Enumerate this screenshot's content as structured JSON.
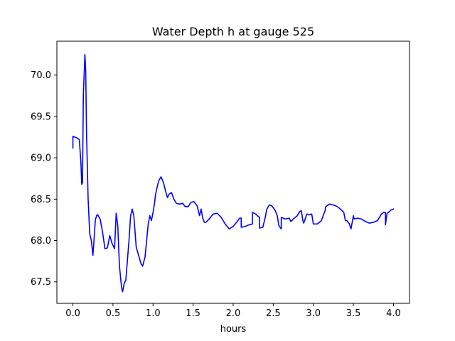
{
  "chart_data": {
    "type": "line",
    "title": "Water Depth h at gauge 525",
    "xlabel": "hours",
    "ylabel": "",
    "xlim": [
      -0.2,
      4.2
    ],
    "ylim": [
      67.24,
      70.41
    ],
    "xticks": [
      0.0,
      0.5,
      1.0,
      1.5,
      2.0,
      2.5,
      3.0,
      3.5,
      4.0
    ],
    "xtick_labels": [
      "0.0",
      "0.5",
      "1.0",
      "1.5",
      "2.0",
      "2.5",
      "3.0",
      "3.5",
      "4.0"
    ],
    "yticks": [
      67.5,
      68.0,
      68.5,
      69.0,
      69.5,
      70.0
    ],
    "ytick_labels": [
      "67.5",
      "68.0",
      "68.5",
      "69.0",
      "69.5",
      "70.0"
    ],
    "grid": false,
    "series": [
      {
        "color": "#0000ff",
        "x": [
          0.0,
          0.0,
          0.05,
          0.08,
          0.1,
          0.11,
          0.12,
          0.13,
          0.15,
          0.16,
          0.17,
          0.19,
          0.21,
          0.23,
          0.25,
          0.27,
          0.28,
          0.3,
          0.31,
          0.34,
          0.37,
          0.4,
          0.43,
          0.46,
          0.49,
          0.52,
          0.54,
          0.56,
          0.58,
          0.6,
          0.61,
          0.62,
          0.64,
          0.66,
          0.69,
          0.7,
          0.72,
          0.74,
          0.76,
          0.79,
          0.82,
          0.85,
          0.87,
          0.9,
          0.92,
          0.94,
          0.96,
          0.98,
          1.0,
          1.02,
          1.03,
          1.05,
          1.07,
          1.1,
          1.13,
          1.15,
          1.18,
          1.2,
          1.23,
          1.26,
          1.29,
          1.33,
          1.37,
          1.4,
          1.44,
          1.47,
          1.51,
          1.55,
          1.58,
          1.6,
          1.62,
          1.64,
          1.66,
          1.7,
          1.75,
          1.8,
          1.85,
          1.9,
          1.95,
          2.0,
          2.05,
          2.08,
          2.1,
          2.1,
          2.15,
          2.2,
          2.24,
          2.24,
          2.28,
          2.3,
          2.33,
          2.33,
          2.37,
          2.4,
          2.42,
          2.45,
          2.48,
          2.52,
          2.55,
          2.57,
          2.6,
          2.6,
          2.65,
          2.7,
          2.72,
          2.75,
          2.8,
          2.83,
          2.85,
          2.87,
          2.88,
          2.92,
          2.95,
          2.98,
          3.0,
          3.02,
          3.05,
          3.1,
          3.15,
          3.15,
          3.17,
          3.2,
          3.25,
          3.3,
          3.35,
          3.38,
          3.4,
          3.42,
          3.45,
          3.47,
          3.5,
          3.51,
          3.55,
          3.6,
          3.65,
          3.7,
          3.75,
          3.8,
          3.85,
          3.88,
          3.9,
          3.9,
          3.92,
          3.95,
          3.97,
          4.0
        ],
        "y": [
          69.12,
          69.26,
          69.24,
          69.22,
          68.94,
          68.68,
          68.7,
          69.75,
          70.25,
          70.05,
          69.3,
          68.5,
          68.08,
          68.0,
          67.82,
          68.1,
          68.25,
          68.31,
          68.31,
          68.26,
          68.1,
          67.9,
          67.91,
          68.06,
          67.96,
          67.9,
          68.33,
          68.18,
          67.7,
          67.5,
          67.42,
          67.38,
          67.48,
          67.52,
          67.88,
          68.0,
          68.3,
          68.38,
          68.3,
          67.92,
          67.82,
          67.72,
          67.69,
          67.8,
          68.0,
          68.2,
          68.3,
          68.24,
          68.34,
          68.46,
          68.55,
          68.64,
          68.72,
          68.77,
          68.7,
          68.62,
          68.52,
          68.56,
          68.58,
          68.5,
          68.45,
          68.44,
          68.45,
          68.41,
          68.41,
          68.46,
          68.47,
          68.42,
          68.3,
          68.38,
          68.27,
          68.22,
          68.22,
          68.26,
          68.32,
          68.33,
          68.28,
          68.2,
          68.14,
          68.17,
          68.23,
          68.27,
          68.27,
          68.16,
          68.17,
          68.19,
          68.2,
          68.34,
          68.32,
          68.3,
          68.28,
          68.15,
          68.16,
          68.28,
          68.38,
          68.43,
          68.42,
          68.37,
          68.3,
          68.18,
          68.14,
          68.28,
          68.26,
          68.27,
          68.23,
          68.26,
          68.3,
          68.35,
          68.36,
          68.24,
          68.21,
          68.32,
          68.31,
          68.32,
          68.2,
          68.2,
          68.2,
          68.24,
          68.37,
          68.4,
          68.42,
          68.44,
          68.43,
          68.41,
          68.37,
          68.34,
          68.24,
          68.24,
          68.2,
          68.14,
          68.3,
          68.26,
          68.27,
          68.26,
          68.23,
          68.21,
          68.22,
          68.24,
          68.32,
          68.34,
          68.34,
          68.19,
          68.33,
          68.35,
          68.37,
          68.38
        ]
      }
    ]
  }
}
